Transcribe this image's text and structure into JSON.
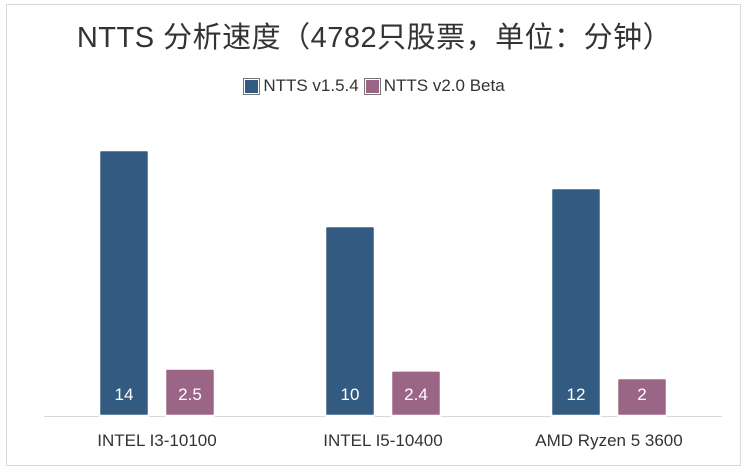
{
  "chart_data": {
    "type": "bar",
    "title": "NTTS 分析速度（4782只股票，单位：分钟）",
    "categories": [
      "INTEL I3-10100",
      "INTEL I5-10400",
      "AMD Ryzen 5 3600"
    ],
    "series": [
      {
        "name": "NTTS v1.5.4",
        "values": [
          14,
          10,
          12
        ],
        "labels": [
          "14",
          "10",
          "12"
        ],
        "color": "#335a80"
      },
      {
        "name": "NTTS v2.0 Beta",
        "values": [
          2.5,
          2.4,
          2
        ],
        "labels": [
          "2.5",
          "2.4",
          "2"
        ],
        "color": "#9b6685"
      }
    ],
    "ylim": [
      0,
      14
    ],
    "grid": false,
    "legend_position": "top"
  }
}
